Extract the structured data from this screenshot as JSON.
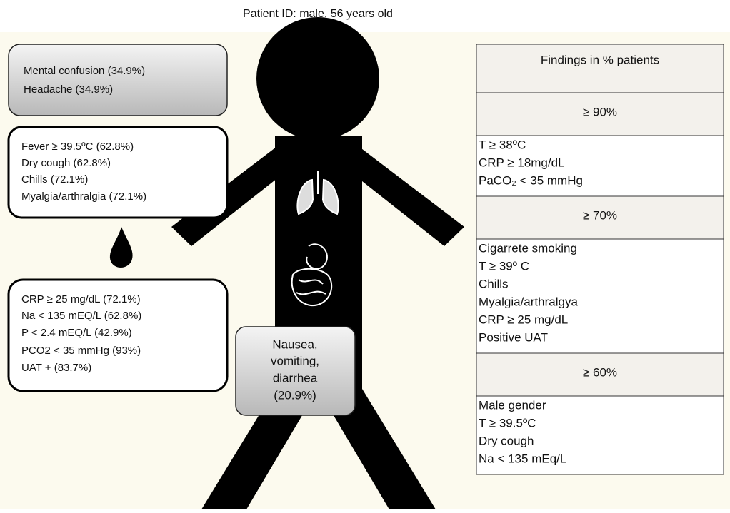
{
  "title": "Patient ID: male, 56 years old",
  "boxes": [
    {
      "lines": [
        "Mental confusion (34.9%)",
        "Headache (34.9%)"
      ]
    },
    {
      "lines": [
        "Fever ≥ 39.5ºC (62.8%)",
        "Dry cough (62.8%)",
        "Chills (72.1%)",
        "Myalgia/arthralgia (72.1%)"
      ]
    },
    {
      "lines": [
        "CRP ≥ 25 mg/dL (72.1%)",
        "Na < 135 mEQ/L (62.8%)",
        "P < 2.4 mEQ/L (42.9%)",
        "PCO2 < 35 mmHg (93%)",
        "UAT + (83.7%)"
      ]
    },
    {
      "lines": [
        "Nausea,",
        "vomiting,",
        "diarrhea",
        "(20.9%)"
      ]
    }
  ],
  "table": {
    "header": "Findings in % patients",
    "groups": [
      {
        "threshold": "≥ 90%",
        "items": [
          "T ≥ 38ºC",
          "CRP ≥ 18mg/dL",
          "PaCO₂ < 35 mmHg"
        ]
      },
      {
        "threshold": "≥ 70%",
        "items": [
          "Cigarrete smoking",
          "T ≥ 39º C",
          "Chills",
          "Myalgia/arthralgya",
          "CRP ≥ 25 mg/dL",
          "Positive UAT"
        ]
      },
      {
        "threshold": "≥ 60%",
        "items": [
          "Male gender",
          "T ≥ 39.5ºC",
          "Dry cough",
          "Na < 135 mEq/L"
        ]
      }
    ]
  }
}
